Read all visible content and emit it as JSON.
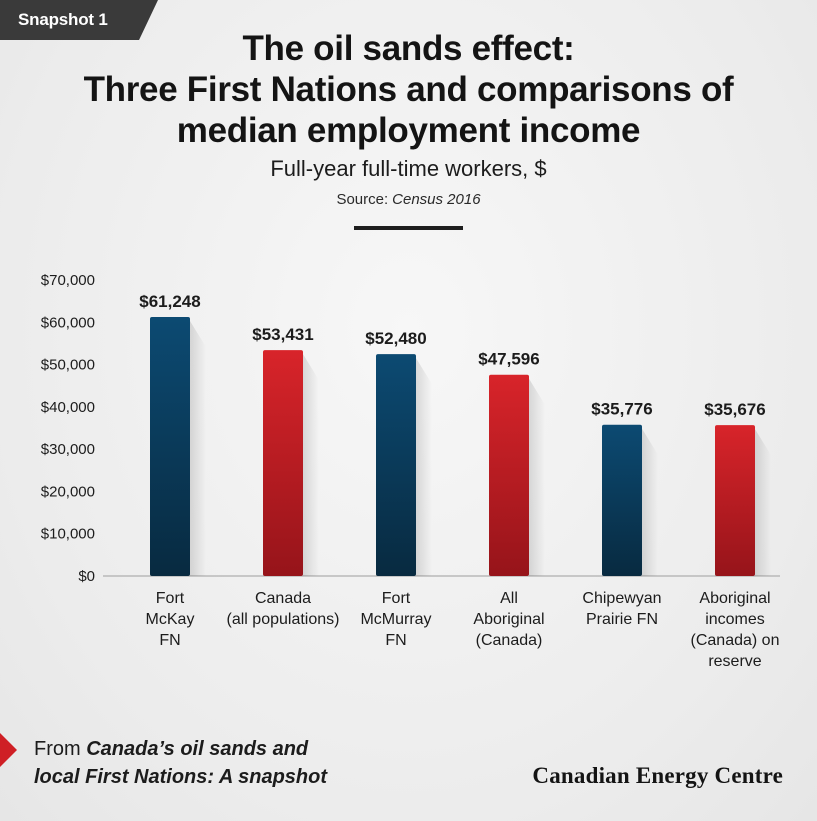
{
  "badge": "Snapshot 1",
  "title_lines": [
    "The oil sands effect:",
    "Three First Nations and comparisons of",
    "median employment income"
  ],
  "subtitle": "Full-year full-time workers, $",
  "source_label": "Source:",
  "source_value": "Census 2016",
  "footer": {
    "prefix": "From ",
    "pub_line1": "Canada’s oil sands and",
    "pub_line2": "local First Nations: A snapshot"
  },
  "brand": "Canadian Energy Centre",
  "colors": {
    "blue": "#0a3d5e",
    "red": "#cf1f25"
  },
  "chart_data": {
    "type": "bar",
    "ylim": [
      0,
      70000
    ],
    "yticks": [
      0,
      10000,
      20000,
      30000,
      40000,
      50000,
      60000,
      70000
    ],
    "ytick_labels": [
      "$0",
      "$10,000",
      "$20,000",
      "$30,000",
      "$40,000",
      "$50,000",
      "$60,000",
      "$70,000"
    ],
    "grid": false,
    "categories": [
      [
        "Fort",
        "McKay",
        "FN"
      ],
      [
        "Canada",
        "(all populations)"
      ],
      [
        "Fort",
        "McMurray",
        "FN"
      ],
      [
        "All",
        "Aboriginal",
        "(Canada)"
      ],
      [
        "Chipewyan",
        "Prairie FN"
      ],
      [
        "Aboriginal",
        "incomes",
        "(Canada) on",
        "reserve"
      ]
    ],
    "values": [
      61248,
      53431,
      52480,
      47596,
      35776,
      35676
    ],
    "value_labels": [
      "$61,248",
      "$53,431",
      "$52,480",
      "$47,596",
      "$35,776",
      "$35,676"
    ],
    "bar_colors": [
      "blue",
      "red",
      "blue",
      "red",
      "blue",
      "red"
    ]
  }
}
